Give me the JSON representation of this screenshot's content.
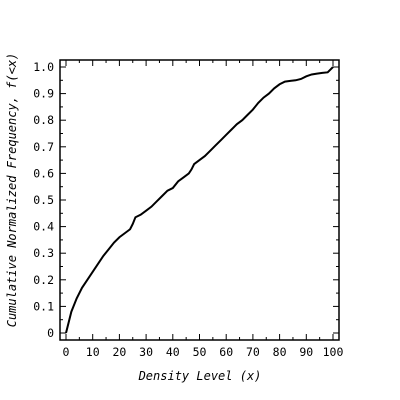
{
  "chart_data": {
    "type": "line",
    "title": "",
    "xlabel": "Density Level (x)",
    "ylabel": "Cumulative Normalized Frequency, f(<x)",
    "xlim": [
      0,
      100
    ],
    "ylim": [
      0,
      1
    ],
    "x_ticks": [
      "0",
      "10",
      "20",
      "30",
      "40",
      "50",
      "60",
      "70",
      "80",
      "90",
      "100"
    ],
    "y_ticks": [
      "0",
      "0.1",
      "0.2",
      "0.3",
      "0.4",
      "0.5",
      "0.6",
      "0.7",
      "0.8",
      "0.9",
      "1.0"
    ],
    "grid": false,
    "series": [
      {
        "color": "#000000",
        "x": [
          0,
          1,
          2,
          4,
          6,
          8,
          10,
          12,
          14,
          16,
          18,
          20,
          22,
          24,
          25,
          26,
          28,
          30,
          32,
          34,
          36,
          38,
          40,
          42,
          44,
          46,
          47,
          48,
          50,
          52,
          54,
          56,
          58,
          60,
          62,
          64,
          66,
          68,
          70,
          72,
          74,
          76,
          78,
          80,
          82,
          84,
          86,
          88,
          90,
          92,
          94,
          96,
          98,
          99,
          100
        ],
        "y": [
          0.0,
          0.04,
          0.08,
          0.13,
          0.17,
          0.2,
          0.23,
          0.26,
          0.29,
          0.315,
          0.34,
          0.36,
          0.375,
          0.39,
          0.41,
          0.435,
          0.445,
          0.46,
          0.475,
          0.495,
          0.515,
          0.535,
          0.545,
          0.57,
          0.585,
          0.6,
          0.615,
          0.635,
          0.65,
          0.665,
          0.685,
          0.705,
          0.725,
          0.745,
          0.765,
          0.785,
          0.8,
          0.82,
          0.84,
          0.865,
          0.885,
          0.9,
          0.92,
          0.935,
          0.945,
          0.948,
          0.95,
          0.955,
          0.965,
          0.972,
          0.975,
          0.978,
          0.98,
          0.99,
          1.0
        ]
      }
    ]
  }
}
